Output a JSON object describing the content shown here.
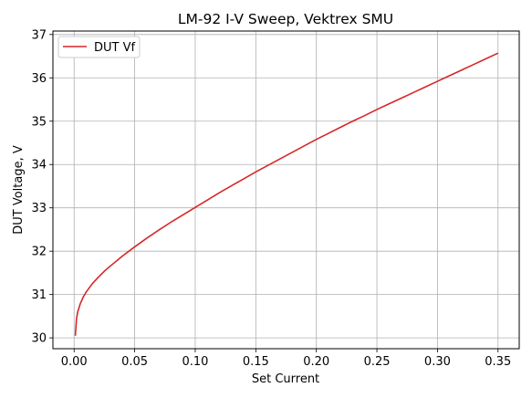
{
  "chart_data": {
    "type": "line",
    "title": "LM-92 I-V Sweep, Vektrex SMU",
    "xlabel": "Set Current",
    "ylabel": "DUT Voltage, V",
    "xlim": [
      -0.0175,
      0.3675
    ],
    "ylim": [
      29.75,
      37.08
    ],
    "xticks": [
      0.0,
      0.05,
      0.1,
      0.15,
      0.2,
      0.25,
      0.3,
      0.35
    ],
    "xtick_labels": [
      "0.00",
      "0.05",
      "0.10",
      "0.15",
      "0.20",
      "0.25",
      "0.30",
      "0.35"
    ],
    "yticks": [
      30,
      31,
      32,
      33,
      34,
      35,
      36,
      37
    ],
    "ytick_labels": [
      "30",
      "31",
      "32",
      "33",
      "34",
      "35",
      "36",
      "37"
    ],
    "grid": true,
    "legend_position": "top-left",
    "series": [
      {
        "name": "DUT Vf",
        "color": "#d62728",
        "x": [
          0.001,
          0.002,
          0.003,
          0.005,
          0.0075,
          0.01,
          0.015,
          0.02,
          0.025,
          0.03,
          0.04,
          0.05,
          0.06,
          0.07,
          0.08,
          0.09,
          0.1,
          0.11,
          0.12,
          0.13,
          0.14,
          0.15,
          0.16,
          0.17,
          0.18,
          0.19,
          0.2,
          0.21,
          0.22,
          0.23,
          0.24,
          0.25,
          0.26,
          0.27,
          0.28,
          0.29,
          0.3,
          0.31,
          0.32,
          0.33,
          0.34,
          0.35
        ],
        "y": [
          30.05,
          30.45,
          30.6,
          30.78,
          30.94,
          31.06,
          31.25,
          31.4,
          31.54,
          31.66,
          31.89,
          32.1,
          32.3,
          32.49,
          32.67,
          32.84,
          33.01,
          33.18,
          33.35,
          33.51,
          33.67,
          33.83,
          33.98,
          34.13,
          34.28,
          34.43,
          34.58,
          34.72,
          34.86,
          35.0,
          35.13,
          35.27,
          35.4,
          35.53,
          35.66,
          35.79,
          35.92,
          36.05,
          36.18,
          36.31,
          36.44,
          36.57
        ]
      }
    ]
  }
}
